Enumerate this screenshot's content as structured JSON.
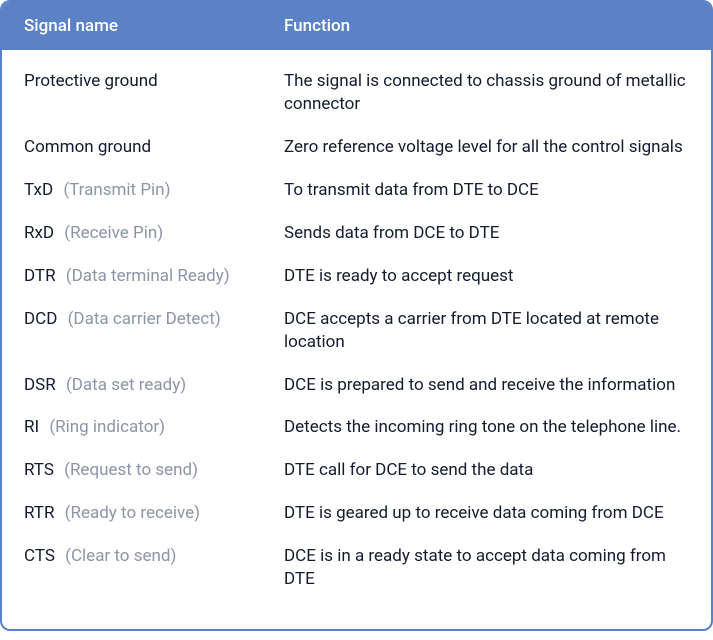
{
  "table": {
    "border_color": "#5a82c5",
    "header_bg": "#5a82c5",
    "header_text_color": "#ffffff",
    "primary_text_color": "#131c2f",
    "secondary_text_color": "#8d95a6",
    "header": {
      "signal": "Signal name",
      "function": "Function"
    },
    "rows": [
      {
        "signal_primary": "Protective ground",
        "signal_secondary": "",
        "function": "The signal is connected to chassis ground of metallic connector"
      },
      {
        "signal_primary": "Common ground",
        "signal_secondary": "",
        "function": "Zero reference voltage level for all the control signals"
      },
      {
        "signal_primary": "TxD",
        "signal_secondary": "(Transmit Pin)",
        "function": "To transmit data from DTE to DCE"
      },
      {
        "signal_primary": "RxD",
        "signal_secondary": "(Receive Pin)",
        "function": "Sends data from DCE to DTE"
      },
      {
        "signal_primary": "DTR",
        "signal_secondary": "(Data terminal Ready)",
        "function": "DTE is ready to accept request"
      },
      {
        "signal_primary": "DCD",
        "signal_secondary": "(Data carrier Detect)",
        "function": "DCE accepts a carrier from DTE located at remote location"
      },
      {
        "signal_primary": "DSR",
        "signal_secondary": "(Data set ready)",
        "function": "DCE is prepared to send and receive the information"
      },
      {
        "signal_primary": "RI",
        "signal_secondary": "(Ring indicator)",
        "function": "Detects the incoming ring tone on the telephone line."
      },
      {
        "signal_primary": "RTS",
        "signal_secondary": "(Request to send)",
        "function": "DTE call for DCE to send the data"
      },
      {
        "signal_primary": "RTR",
        "signal_secondary": "(Ready to receive)",
        "function": "DTE is geared up to receive data coming from DCE"
      },
      {
        "signal_primary": "CTS",
        "signal_secondary": "(Clear to send)",
        "function": "DCE is in a ready state to accept data coming from DTE"
      }
    ]
  }
}
